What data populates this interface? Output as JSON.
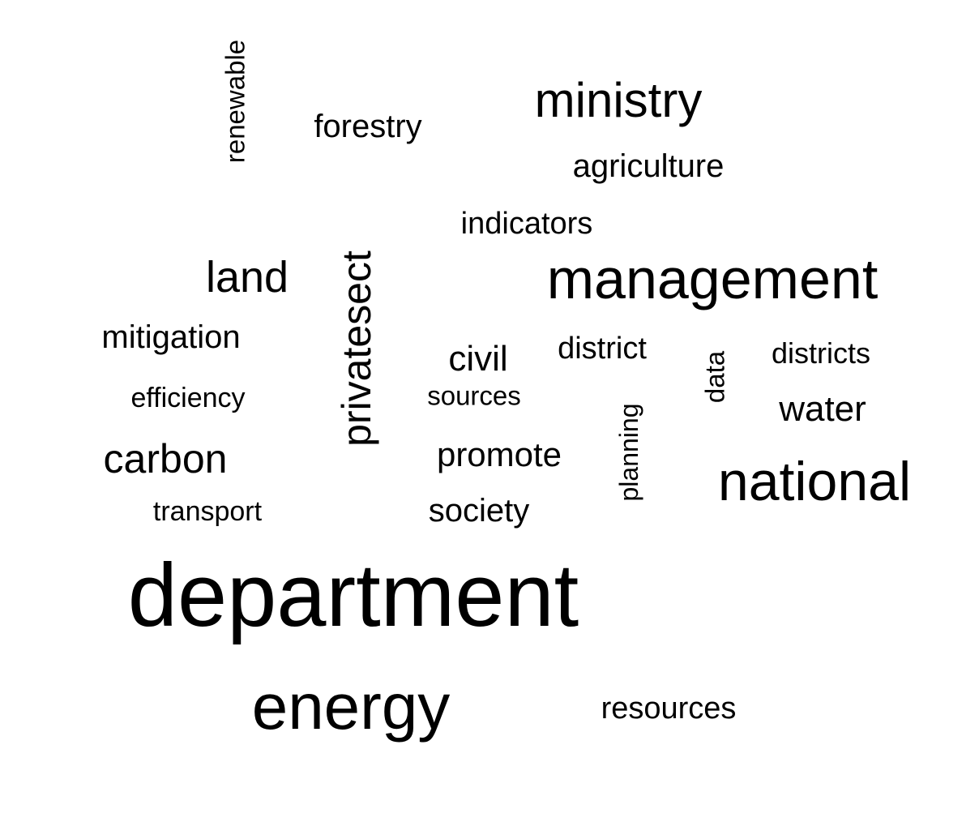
{
  "words": {
    "renewable": "renewable",
    "forestry": "forestry",
    "ministry": "ministry",
    "agriculture": "agriculture",
    "indicators": "indicators",
    "land": "land",
    "privatesect": "privatesect",
    "management": "management",
    "mitigation": "mitigation",
    "civil": "civil",
    "district": "district",
    "data": "data",
    "districts": "districts",
    "efficiency": "efficiency",
    "sources": "sources",
    "water": "water",
    "planning": "planning",
    "carbon": "carbon",
    "promote": "promote",
    "national": "national",
    "transport": "transport",
    "society": "society",
    "department": "department",
    "energy": "energy",
    "resources": "resources"
  },
  "colors": {
    "text": "#000000",
    "background": "#ffffff"
  }
}
